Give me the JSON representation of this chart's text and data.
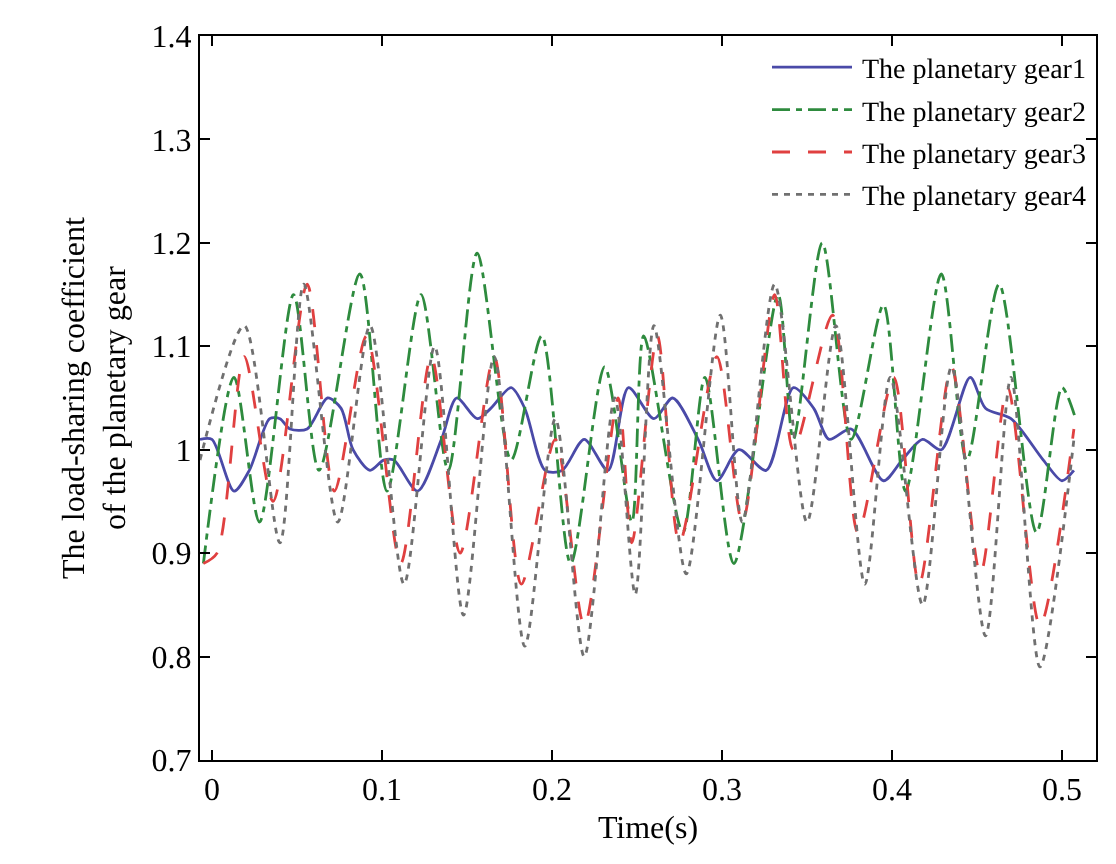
{
  "chart_data": {
    "type": "line",
    "xlabel": "Time(s)",
    "ylabel": "The load-sharing coefficient of the planetary gear",
    "xlim": [
      -0.007,
      0.52
    ],
    "xticks": [
      0,
      0.1,
      0.2,
      0.3,
      0.4,
      0.5
    ],
    "ylim": [
      0.7,
      1.4
    ],
    "yticks": [
      0.7,
      0.8,
      0.9,
      1,
      1.1,
      1.2,
      1.3,
      1.4
    ],
    "grid": false,
    "legend": "top right",
    "marker": "none",
    "series": [
      {
        "name": "The planetary gear1",
        "color": "#4a4aa8",
        "line_style": "solid",
        "x": [
          -0.007,
          0,
          0.013,
          0.022,
          0.034,
          0.04,
          0.046,
          0.056,
          0.068,
          0.076,
          0.083,
          0.093,
          0.101,
          0.107,
          0.121,
          0.135,
          0.144,
          0.156,
          0.164,
          0.176,
          0.184,
          0.196,
          0.206,
          0.219,
          0.233,
          0.245,
          0.26,
          0.271,
          0.286,
          0.297,
          0.31,
          0.326,
          0.342,
          0.354,
          0.363,
          0.376,
          0.395,
          0.406,
          0.418,
          0.429,
          0.446,
          0.455,
          0.47,
          0.489,
          0.5,
          0.507
        ],
        "values": [
          1.01,
          1.01,
          0.96,
          0.98,
          1.03,
          1.03,
          1.02,
          1.02,
          1.05,
          1.04,
          1.0,
          0.98,
          0.99,
          0.99,
          0.96,
          1.01,
          1.05,
          1.03,
          1.04,
          1.06,
          1.04,
          0.98,
          0.98,
          1.01,
          0.98,
          1.06,
          1.03,
          1.05,
          1.01,
          0.97,
          1.0,
          0.98,
          1.06,
          1.04,
          1.01,
          1.02,
          0.97,
          0.99,
          1.01,
          1.0,
          1.07,
          1.04,
          1.03,
          0.99,
          0.97,
          0.98
        ]
      },
      {
        "name": "The planetary gear2",
        "color": "#2e8b3e",
        "line_style": "dashdot",
        "x": [
          -0.005,
          0.013,
          0.028,
          0.048,
          0.063,
          0.087,
          0.103,
          0.123,
          0.139,
          0.156,
          0.176,
          0.194,
          0.211,
          0.231,
          0.247,
          0.254,
          0.277,
          0.29,
          0.307,
          0.333,
          0.342,
          0.359,
          0.376,
          0.395,
          0.408,
          0.429,
          0.444,
          0.463,
          0.485,
          0.5,
          0.508
        ],
        "values": [
          0.89,
          1.07,
          0.93,
          1.15,
          0.98,
          1.17,
          0.96,
          1.15,
          0.98,
          1.19,
          0.99,
          1.11,
          0.89,
          1.08,
          0.93,
          1.11,
          0.92,
          1.07,
          0.89,
          1.15,
          1.01,
          1.2,
          1.01,
          1.14,
          0.96,
          1.17,
          0.99,
          1.16,
          0.92,
          1.06,
          1.03
        ]
      },
      {
        "name": "The planetary gear3",
        "color": "#e04040",
        "line_style": "dashed",
        "x": [
          -0.005,
          0.003,
          0.019,
          0.036,
          0.056,
          0.072,
          0.091,
          0.111,
          0.129,
          0.146,
          0.166,
          0.182,
          0.202,
          0.219,
          0.239,
          0.247,
          0.262,
          0.275,
          0.297,
          0.312,
          0.331,
          0.342,
          0.365,
          0.38,
          0.401,
          0.416,
          0.435,
          0.452,
          0.468,
          0.487,
          0.507
        ],
        "values": [
          0.89,
          0.9,
          1.09,
          0.95,
          1.16,
          0.96,
          1.11,
          0.89,
          1.09,
          0.9,
          1.09,
          0.87,
          1.01,
          0.83,
          1.05,
          0.91,
          1.11,
          0.91,
          1.09,
          0.93,
          1.15,
          1.0,
          1.13,
          0.92,
          1.07,
          0.87,
          1.08,
          0.88,
          1.06,
          0.83,
          1.02
        ]
      },
      {
        "name": "The planetary gear4",
        "color": "#707070",
        "line_style": "dotted",
        "x": [
          -0.007,
          0.019,
          0.04,
          0.054,
          0.074,
          0.093,
          0.113,
          0.131,
          0.148,
          0.166,
          0.184,
          0.202,
          0.219,
          0.237,
          0.249,
          0.26,
          0.279,
          0.299,
          0.312,
          0.331,
          0.35,
          0.367,
          0.384,
          0.399,
          0.418,
          0.435,
          0.455,
          0.47,
          0.487,
          0.507
        ],
        "values": [
          0.99,
          1.12,
          0.91,
          1.16,
          0.93,
          1.12,
          0.87,
          1.1,
          0.84,
          1.09,
          0.81,
          1.03,
          0.8,
          1.05,
          0.86,
          1.12,
          0.88,
          1.13,
          0.93,
          1.16,
          0.93,
          1.12,
          0.87,
          1.07,
          0.85,
          1.08,
          0.82,
          1.07,
          0.79,
          1.01
        ]
      }
    ]
  }
}
